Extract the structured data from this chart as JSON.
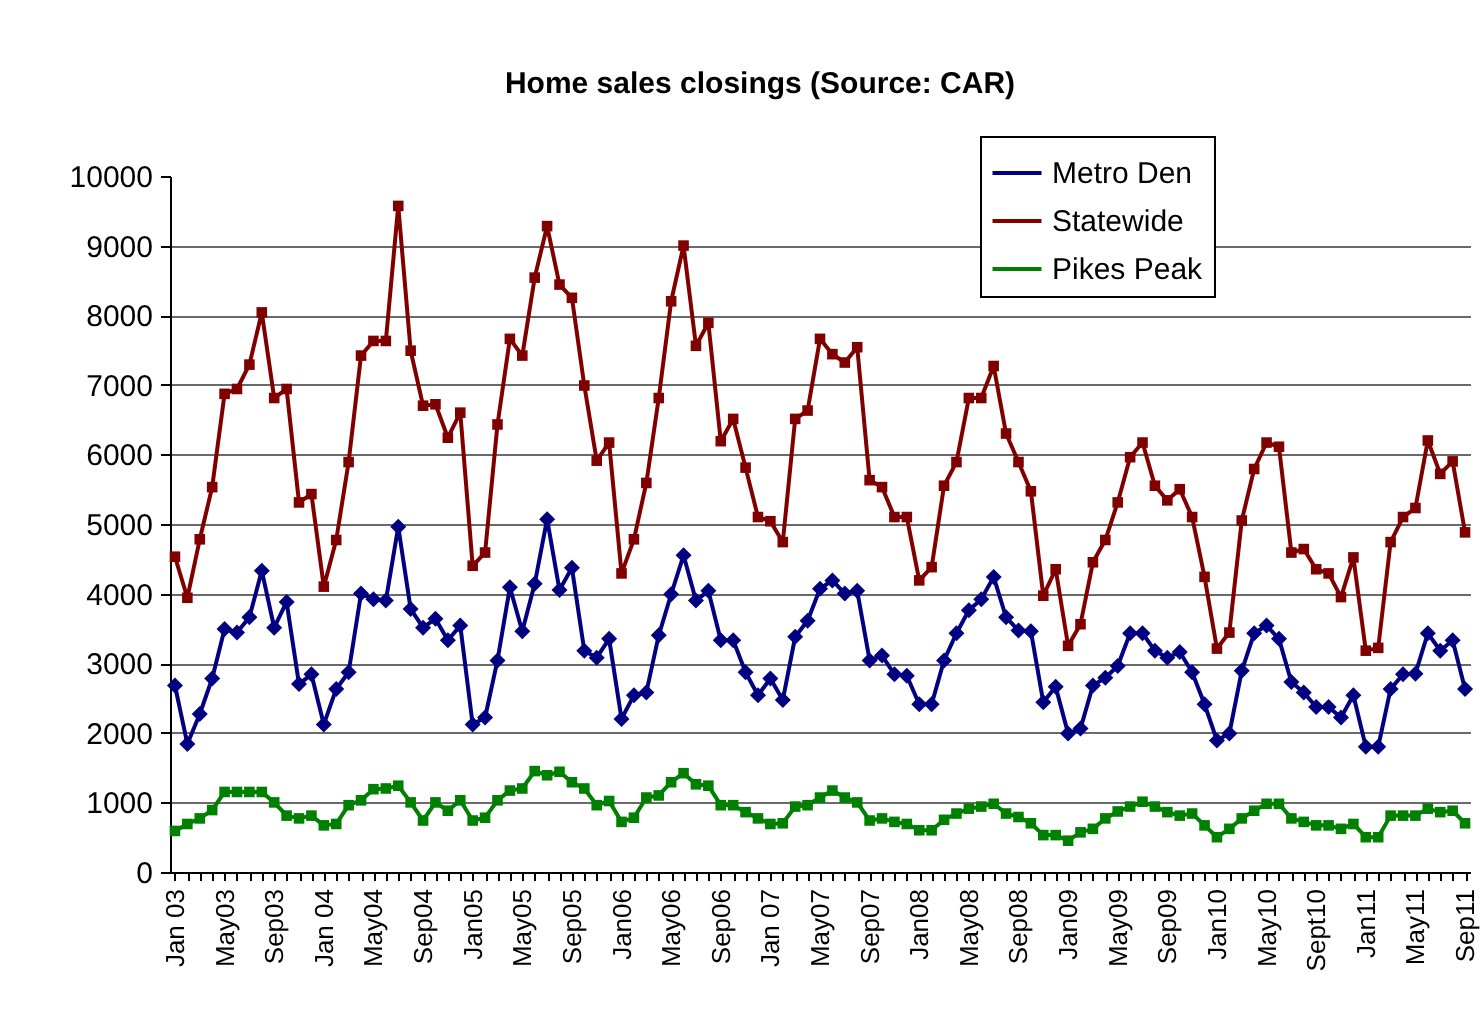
{
  "chart_data": {
    "type": "line",
    "title": "Home sales closings (Source: CAR)",
    "categories": [
      "Jan 03",
      null,
      null,
      null,
      "May03",
      null,
      null,
      null,
      "Sep03",
      null,
      null,
      null,
      "Jan 04",
      null,
      null,
      null,
      "May04",
      null,
      null,
      null,
      "Sep04",
      null,
      null,
      null,
      "Jan05",
      null,
      null,
      null,
      "May05",
      null,
      null,
      null,
      "Sep05",
      null,
      null,
      null,
      "Jan06",
      null,
      null,
      null,
      "May06",
      null,
      null,
      null,
      "Sep06",
      null,
      null,
      null,
      "Jan 07",
      null,
      null,
      null,
      "May07",
      null,
      null,
      null,
      "Sep07",
      null,
      null,
      null,
      "Jan08",
      null,
      null,
      null,
      "May08",
      null,
      null,
      null,
      "Sep08",
      null,
      null,
      null,
      "Jan09",
      null,
      null,
      null,
      "May09",
      null,
      null,
      null,
      "Sep09",
      null,
      null,
      null,
      "Jan10",
      null,
      null,
      null,
      "May10",
      null,
      null,
      null,
      "Sept10",
      null,
      null,
      null,
      "Jan11",
      null,
      null,
      null,
      "May11",
      null,
      null,
      null,
      "Sep11"
    ],
    "series": [
      {
        "name": "Metro Den",
        "color": "#000080",
        "marker": "diamond",
        "values": [
          2680,
          1840,
          2270,
          2780,
          3490,
          3440,
          3660,
          4330,
          3510,
          3880,
          2700,
          2840,
          2120,
          2630,
          2870,
          4000,
          3920,
          3900,
          4960,
          3780,
          3510,
          3640,
          3330,
          3540,
          2120,
          2220,
          3040,
          4090,
          3460,
          4140,
          5070,
          4050,
          4370,
          3180,
          3080,
          3350,
          2200,
          2540,
          2580,
          3400,
          3990,
          4550,
          3900,
          4040,
          3330,
          3330,
          2870,
          2540,
          2780,
          2470,
          3380,
          3610,
          4070,
          4190,
          4000,
          4040,
          3040,
          3110,
          2840,
          2820,
          2410,
          2410,
          3040,
          3430,
          3760,
          3920,
          4240,
          3660,
          3470,
          3460,
          2440,
          2660,
          1990,
          2060,
          2680,
          2790,
          2960,
          3430,
          3430,
          3180,
          3080,
          3160,
          2870,
          2410,
          1890,
          1990,
          2890,
          3430,
          3540,
          3350,
          2730,
          2580,
          2370,
          2370,
          2220,
          2540,
          1800,
          1800,
          2630,
          2840,
          2850,
          3430,
          3180,
          3330,
          2630
        ]
      },
      {
        "name": "Statewide",
        "color": "#800000",
        "marker": "square",
        "values": [
          4530,
          3940,
          4780,
          5530,
          6870,
          6940,
          7290,
          8040,
          6810,
          6940,
          5310,
          5430,
          4100,
          4770,
          5890,
          7420,
          7630,
          7630,
          9570,
          7490,
          6700,
          6720,
          6240,
          6600,
          4400,
          4590,
          6430,
          7660,
          7420,
          8540,
          9280,
          8440,
          8250,
          6990,
          5910,
          6170,
          4290,
          4780,
          5590,
          6810,
          8200,
          9000,
          7560,
          7890,
          6190,
          6510,
          5810,
          5100,
          5040,
          4740,
          6510,
          6630,
          7660,
          7440,
          7320,
          7540,
          5630,
          5530,
          5100,
          5100,
          4190,
          4380,
          5550,
          5890,
          6810,
          6810,
          7270,
          6300,
          5890,
          5470,
          3970,
          4350,
          3250,
          3560,
          4450,
          4770,
          5310,
          5960,
          6170,
          5550,
          5340,
          5500,
          5100,
          4240,
          3210,
          3440,
          5050,
          5790,
          6170,
          6110,
          4590,
          4640,
          4350,
          4290,
          3950,
          4520,
          3180,
          3220,
          4740,
          5100,
          5230,
          6200,
          5720,
          5900,
          4880
        ]
      },
      {
        "name": "Pikes Peak",
        "color": "#008000",
        "marker": "square",
        "values": [
          590,
          690,
          770,
          890,
          1150,
          1150,
          1150,
          1150,
          1000,
          810,
          770,
          810,
          670,
          690,
          960,
          1030,
          1190,
          1200,
          1240,
          1000,
          740,
          1000,
          880,
          1030,
          740,
          780,
          1030,
          1170,
          1200,
          1450,
          1390,
          1440,
          1290,
          1200,
          960,
          1020,
          720,
          780,
          1070,
          1100,
          1290,
          1420,
          1260,
          1240,
          960,
          960,
          860,
          770,
          690,
          700,
          940,
          960,
          1070,
          1170,
          1070,
          1000,
          740,
          770,
          720,
          690,
          600,
          600,
          750,
          840,
          910,
          940,
          980,
          840,
          790,
          700,
          530,
          530,
          450,
          570,
          620,
          770,
          870,
          940,
          1010,
          940,
          860,
          810,
          840,
          670,
          500,
          620,
          770,
          880,
          980,
          980,
          770,
          720,
          670,
          670,
          620,
          690,
          500,
          500,
          810,
          810,
          810,
          910,
          860,
          880,
          700
        ]
      }
    ],
    "ylim": [
      0,
      10000
    ],
    "yticks": [
      0,
      1000,
      2000,
      3000,
      4000,
      5000,
      6000,
      7000,
      8000,
      9000,
      10000
    ],
    "grid": "y",
    "legend": "top right"
  }
}
